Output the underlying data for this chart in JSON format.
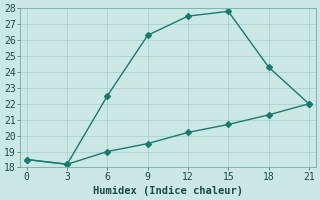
{
  "line1_x": [
    0,
    3,
    6,
    9,
    12,
    15,
    18,
    21
  ],
  "line1_y": [
    18.5,
    18.2,
    22.5,
    26.3,
    27.5,
    27.8,
    24.3,
    22.0
  ],
  "line2_x": [
    0,
    3,
    6,
    9,
    12,
    15,
    18,
    21
  ],
  "line2_y": [
    18.5,
    18.2,
    19.0,
    19.5,
    20.2,
    20.7,
    21.3,
    22.0
  ],
  "line_color": "#1a7a6e",
  "bg_color": "#cce8e4",
  "grid_color": "#aad4cf",
  "xlabel": "Humidex (Indice chaleur)",
  "xlim": [
    -0.5,
    21.5
  ],
  "ylim": [
    18,
    28
  ],
  "xticks": [
    0,
    3,
    6,
    9,
    12,
    15,
    18,
    21
  ],
  "yticks": [
    18,
    19,
    20,
    21,
    22,
    23,
    24,
    25,
    26,
    27,
    28
  ],
  "xlabel_fontsize": 7.5,
  "tick_fontsize": 7,
  "marker": "D",
  "marker_size": 3.0,
  "linewidth": 1.0
}
